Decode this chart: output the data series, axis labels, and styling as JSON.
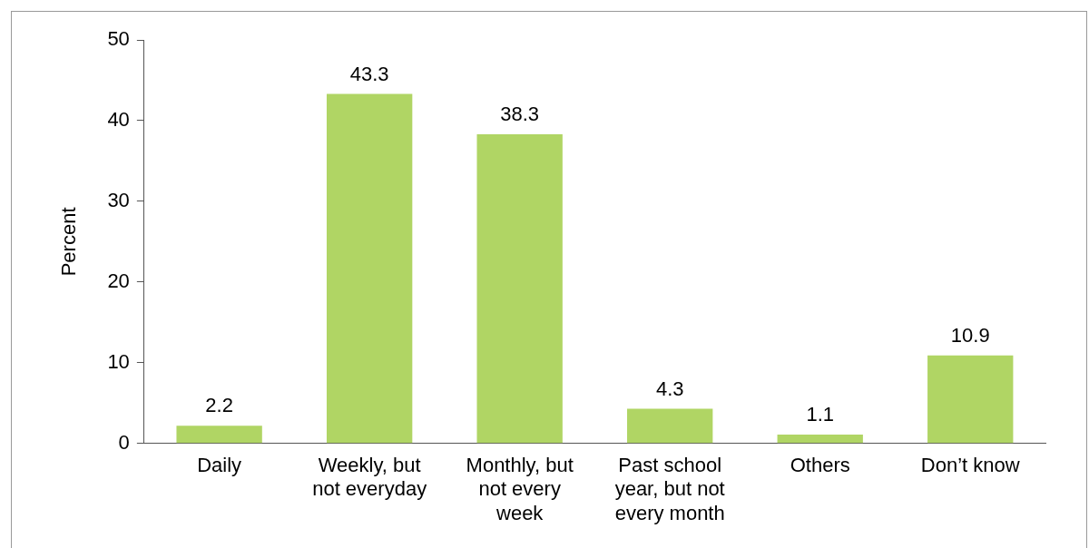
{
  "chart_data": {
    "type": "bar",
    "ylabel": "Percent",
    "categories": [
      "Daily",
      "Weekly, but not everyday",
      "Monthly, but not every week",
      "Past school year, but not every month",
      "Others",
      "Don’t know"
    ],
    "values": [
      2.2,
      43.3,
      38.3,
      4.3,
      1.1,
      10.9
    ],
    "color": "#b0d564",
    "ylim": [
      0,
      50
    ],
    "yticks": [
      0,
      10,
      20,
      30,
      40,
      50
    ],
    "grid": false,
    "legend": false,
    "data_labels": true
  }
}
